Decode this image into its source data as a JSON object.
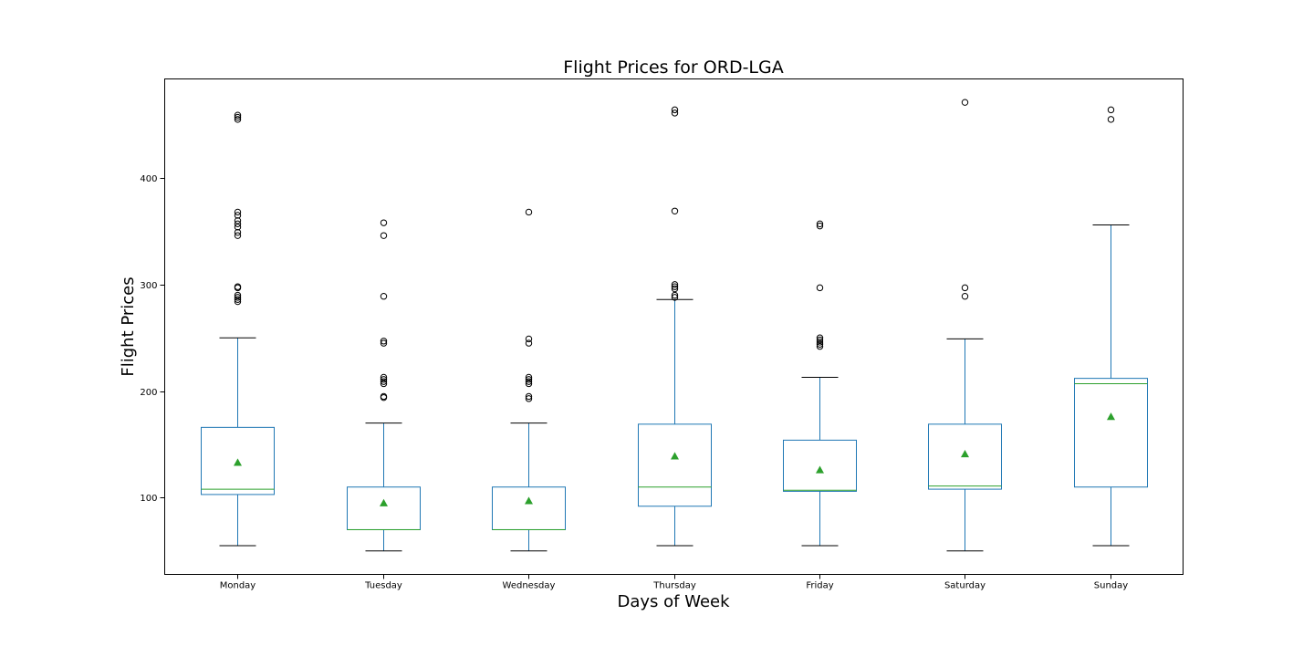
{
  "chart_data": {
    "type": "box",
    "title": "Flight Prices for ORD-LGA",
    "xlabel": "Days of Week",
    "ylabel": "Flight Prices",
    "ylim": [
      28,
      493
    ],
    "yticks": [
      100,
      200,
      300,
      400
    ],
    "grid": false,
    "colors": {
      "box": "#1f77b4",
      "median": "#2ca02c",
      "mean": "#2ca02c",
      "whisker_cap": "#000000",
      "flier": "#000000"
    },
    "categories": [
      "Monday",
      "Tuesday",
      "Wednesday",
      "Thursday",
      "Friday",
      "Saturday",
      "Sunday"
    ],
    "boxes": [
      {
        "category": "Monday",
        "whisker_low": 55,
        "q1": 103,
        "median": 108,
        "q3": 166,
        "whisker_high": 250,
        "mean": 133,
        "outliers": [
          459,
          457,
          455,
          368,
          365,
          360,
          357,
          354,
          349,
          346,
          298,
          297,
          290,
          288,
          286,
          284
        ]
      },
      {
        "category": "Tuesday",
        "whisker_low": 50,
        "q1": 70,
        "median": 70,
        "q3": 110,
        "whisker_high": 170,
        "mean": 95,
        "outliers": [
          358,
          346,
          289,
          247,
          245,
          213,
          211,
          209,
          207,
          195,
          194
        ]
      },
      {
        "category": "Wednesday",
        "whisker_low": 50,
        "q1": 70,
        "median": 70,
        "q3": 110,
        "whisker_high": 170,
        "mean": 97,
        "outliers": [
          368,
          249,
          245,
          213,
          211,
          209,
          207,
          195,
          193
        ]
      },
      {
        "category": "Thursday",
        "whisker_low": 55,
        "q1": 92,
        "median": 110,
        "q3": 169,
        "whisker_high": 286,
        "mean": 139,
        "outliers": [
          464,
          461,
          369,
          300,
          298,
          296,
          290,
          288
        ]
      },
      {
        "category": "Friday",
        "whisker_low": 55,
        "q1": 106,
        "median": 107,
        "q3": 154,
        "whisker_high": 213,
        "mean": 126,
        "outliers": [
          357,
          355,
          297,
          250,
          248,
          246,
          244,
          242
        ]
      },
      {
        "category": "Saturday",
        "whisker_low": 50,
        "q1": 108,
        "median": 111,
        "q3": 169,
        "whisker_high": 249,
        "mean": 141,
        "outliers": [
          471,
          297,
          289
        ]
      },
      {
        "category": "Sunday",
        "whisker_low": 55,
        "q1": 110,
        "median": 207,
        "q3": 212,
        "whisker_high": 356,
        "mean": 176,
        "outliers": [
          464,
          455
        ]
      }
    ]
  }
}
